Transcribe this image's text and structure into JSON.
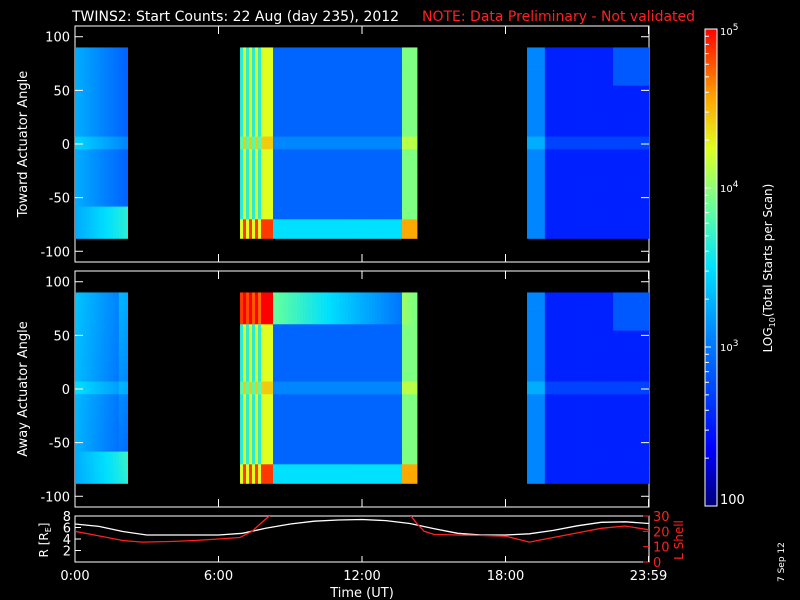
{
  "title": {
    "main": "TWINS2: Start Counts: 22 Aug (day 235), 2012",
    "note": "NOTE: Data Preliminary - Not validated",
    "note_color": "#ff2020"
  },
  "date_stamp": "7 Sep 12",
  "chart_data": [
    {
      "type": "heatmap",
      "panel": "top",
      "ylabel": "Toward Actuator Angle",
      "ylim": [
        -110,
        110
      ],
      "yticks": [
        100,
        50,
        0,
        -50,
        -100
      ],
      "xlim": [
        0,
        24
      ],
      "data_y_range": [
        -88,
        90
      ],
      "data_time_blocks_hours": [
        [
          0.0,
          2.2
        ],
        [
          6.9,
          14.3
        ],
        [
          18.9,
          23.99
        ]
      ],
      "colorscale": "log10 counts, rainbow (blue=low, red=high)",
      "tick_labels": [
        "100",
        "50",
        "0",
        "-50",
        "-100"
      ]
    },
    {
      "type": "heatmap",
      "panel": "middle",
      "ylabel": "Away Actuator Angle",
      "ylim": [
        -110,
        110
      ],
      "yticks": [
        100,
        50,
        0,
        -50,
        -100
      ],
      "xlim": [
        0,
        24
      ],
      "data_y_range": [
        -88,
        90
      ],
      "data_time_blocks_hours": [
        [
          0.0,
          2.2
        ],
        [
          6.9,
          14.3
        ],
        [
          18.9,
          23.99
        ]
      ],
      "colorscale": "log10 counts, rainbow (blue=low, red=high)",
      "tick_labels": [
        "100",
        "50",
        "0",
        "-50",
        "-100"
      ]
    },
    {
      "type": "line",
      "panel": "bottom",
      "xlabel": "Time (UT)",
      "xlim": [
        0,
        24
      ],
      "x_tick_labels": [
        "0:00",
        "6:00",
        "12:00",
        "18:00",
        "23:59"
      ],
      "x_tick_values": [
        0,
        6,
        12,
        18,
        23.98
      ],
      "left_axis": {
        "label": "R (R_E)",
        "label_text": "R [R",
        "label_sub": "E",
        "label_close": "]",
        "ylim": [
          0,
          8
        ],
        "tick_labels": [
          "8",
          "6",
          "4",
          "2"
        ],
        "tick_values": [
          8,
          6,
          4,
          2
        ],
        "color": "#ffffff"
      },
      "right_axis": {
        "label": "L Shell",
        "ylim": [
          0,
          30
        ],
        "tick_labels": [
          "30",
          "20",
          "10",
          "0"
        ],
        "tick_values": [
          30,
          20,
          10,
          0
        ],
        "color": "#ff2020"
      },
      "series": [
        {
          "name": "R",
          "axis": "left",
          "color": "#ffffff",
          "x": [
            0,
            1,
            2,
            3,
            4,
            5,
            6,
            7,
            8,
            9,
            10,
            11,
            12,
            13,
            14,
            15,
            16,
            17,
            18,
            19,
            20,
            21,
            22,
            23,
            24
          ],
          "y": [
            6.6,
            6.2,
            5.3,
            4.7,
            4.7,
            4.7,
            4.7,
            5.0,
            5.9,
            6.6,
            7.1,
            7.3,
            7.4,
            7.2,
            6.7,
            5.8,
            5.0,
            4.7,
            4.7,
            4.9,
            5.5,
            6.3,
            6.9,
            7.0,
            6.7
          ]
        },
        {
          "name": "L Shell",
          "axis": "right",
          "color": "#ff2020",
          "x": [
            0,
            1,
            2,
            2.8,
            4,
            5,
            6,
            6.9,
            7.4,
            7.9,
            8.2,
            14.0,
            14.3,
            14.6,
            15,
            16,
            17,
            18,
            19.0,
            20,
            21,
            22,
            23,
            24
          ],
          "y": [
            20,
            17,
            14,
            13,
            13.4,
            14,
            15,
            16,
            20,
            27,
            31,
            31,
            25,
            20,
            18,
            17.6,
            17.3,
            16.8,
            13,
            16,
            19,
            22,
            23.5,
            21
          ]
        }
      ]
    },
    {
      "type": "colorbar",
      "label": "LOG10(Total Starts per Scan)",
      "label_parts": [
        "LOG",
        "10",
        "(Total Starts per Scan)"
      ],
      "scale": "log",
      "range": [
        100,
        100000
      ],
      "tick_values": [
        100000,
        10000,
        1000,
        100
      ],
      "tick_labels": [
        {
          "base": "10",
          "exp": "5"
        },
        {
          "base": "10",
          "exp": "4"
        },
        {
          "base": "10",
          "exp": "3"
        },
        {
          "base": "100",
          "exp": ""
        }
      ]
    }
  ]
}
